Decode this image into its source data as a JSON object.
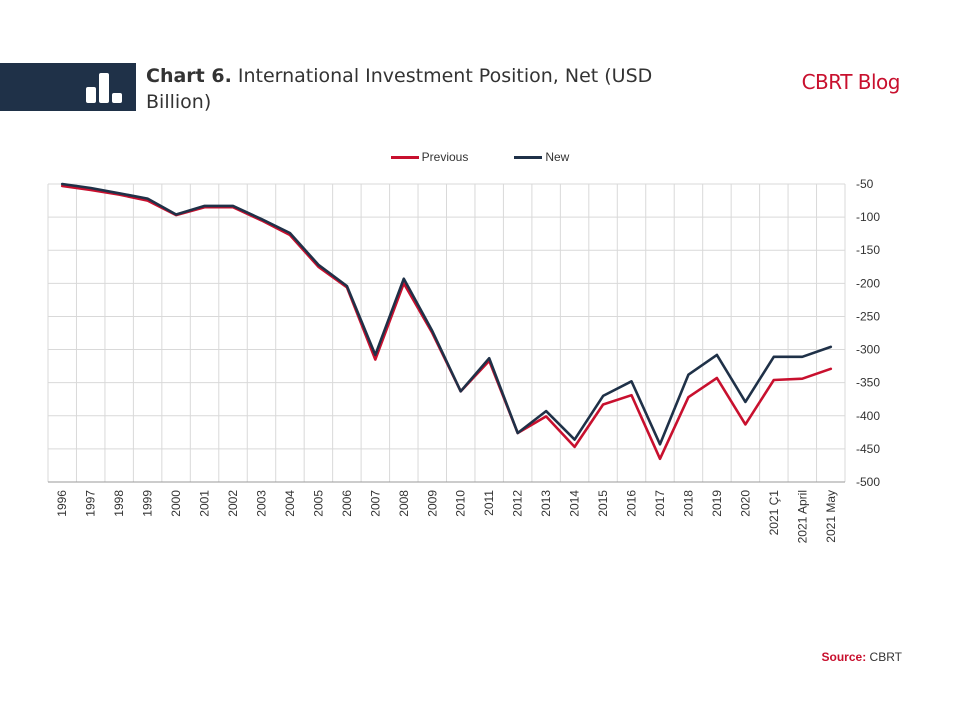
{
  "header": {
    "chart_number": "Chart 6.",
    "chart_title": "International Investment Position, Net (USD Billion)",
    "brand": "CBRT Blog"
  },
  "footer": {
    "source_label": "Source:",
    "source_value": "CBRT"
  },
  "colors": {
    "previous": "#c8102e",
    "new": "#1f3148",
    "grid": "#d9d9d9",
    "brand": "#c8102e"
  },
  "chart_data": {
    "type": "line",
    "categories": [
      "1996",
      "1997",
      "1998",
      "1999",
      "2000",
      "2001",
      "2002",
      "2003",
      "2004",
      "2005",
      "2006",
      "2007",
      "2008",
      "2009",
      "2010",
      "2011",
      "2012",
      "2013",
      "2014",
      "2015",
      "2016",
      "2017",
      "2018",
      "2019",
      "2020",
      "2021 Ç1",
      "2021 April",
      "2021 May"
    ],
    "series": [
      {
        "name": "Previous",
        "color": "#c8102e",
        "values": [
          -53,
          -59,
          -66,
          -75,
          -97,
          -85,
          -85,
          -105,
          -127,
          -175,
          -206,
          -315,
          -200,
          -275,
          -363,
          -317,
          -426,
          -401,
          -447,
          -383,
          -369,
          -465,
          -372,
          -343,
          -413,
          -346,
          -344,
          -329
        ]
      },
      {
        "name": "New",
        "color": "#1f3148",
        "values": [
          -50,
          -56,
          -64,
          -72,
          -96,
          -83,
          -83,
          -103,
          -124,
          -172,
          -204,
          -308,
          -193,
          -272,
          -363,
          -313,
          -426,
          -393,
          -436,
          -370,
          -348,
          -443,
          -338,
          -308,
          -379,
          -311,
          -311,
          -296
        ]
      }
    ],
    "ylim": [
      -500,
      -50
    ],
    "yticks": [
      -50,
      -100,
      -150,
      -200,
      -250,
      -300,
      -350,
      -400,
      -450,
      -500
    ],
    "y_axis_position": "right",
    "grid": true,
    "legend_position": "top-center"
  }
}
